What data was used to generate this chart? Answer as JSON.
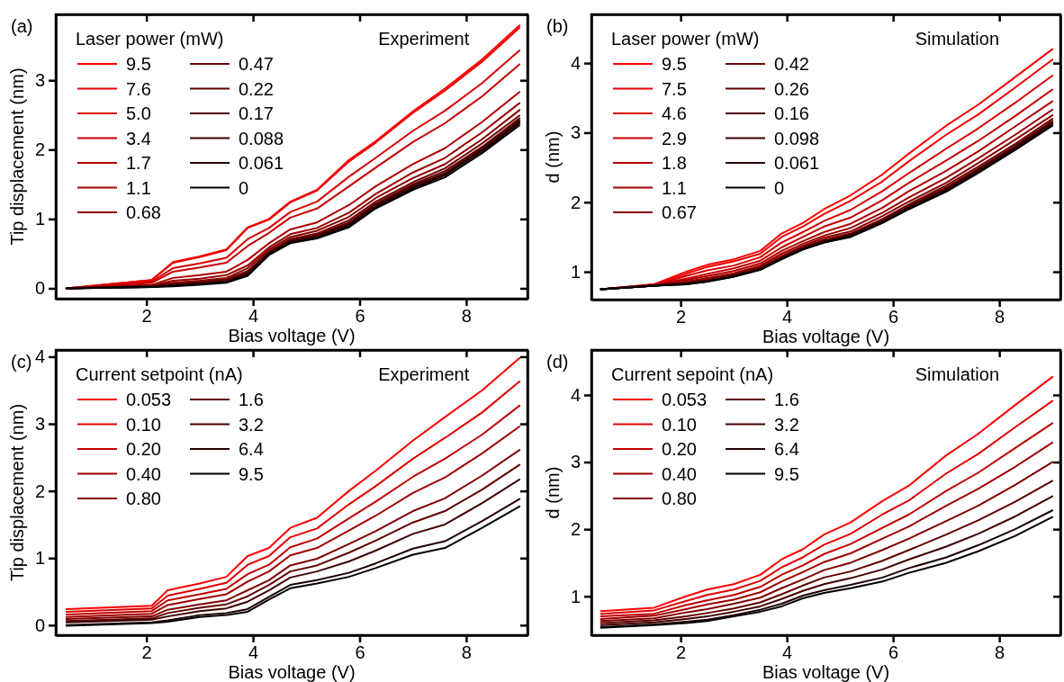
{
  "chart_data": [
    {
      "type": "line",
      "annotations": [
        "(a)",
        "Experiment"
      ],
      "xlabel": "Bias voltage (V)",
      "ylabel": "Tip displacement (nm)",
      "legend_title": "Laser power (mW)",
      "legend": "top left",
      "xlim": [
        0.3,
        9.15
      ],
      "ylim": [
        -0.15,
        3.95
      ],
      "xticks": [
        2,
        4,
        6,
        8
      ],
      "yticks": [
        0,
        1,
        2,
        3
      ],
      "grid": false,
      "line_style": "solid",
      "marker": "none",
      "x": [
        0.5,
        2.1,
        2.5,
        3,
        3.5,
        3.9,
        4.3,
        4.7,
        5.2,
        5.8,
        6.3,
        7,
        7.6,
        8.3,
        9
      ],
      "series": [
        {
          "name": "9.5",
          "color": "#ff0000",
          "values": [
            0,
            0.12,
            0.38,
            0.46,
            0.56,
            0.88,
            1.0,
            1.25,
            1.42,
            1.85,
            2.12,
            2.55,
            2.88,
            3.3,
            3.79
          ]
        },
        {
          "name": "7.6",
          "color": "#ec0000",
          "values": [
            0,
            0.12,
            0.37,
            0.45,
            0.55,
            0.87,
            0.99,
            1.24,
            1.41,
            1.83,
            2.1,
            2.53,
            2.85,
            3.27,
            3.76
          ]
        },
        {
          "name": "5.0",
          "color": "#d80000",
          "values": [
            0,
            0.1,
            0.29,
            0.36,
            0.44,
            0.71,
            0.87,
            1.1,
            1.25,
            1.61,
            1.88,
            2.27,
            2.56,
            2.96,
            3.43
          ]
        },
        {
          "name": "3.4",
          "color": "#c40000",
          "values": [
            0,
            0.08,
            0.24,
            0.3,
            0.37,
            0.61,
            0.8,
            1.02,
            1.15,
            1.47,
            1.74,
            2.11,
            2.38,
            2.77,
            3.23
          ]
        },
        {
          "name": "1.7",
          "color": "#b00000",
          "values": [
            0,
            0.05,
            0.15,
            0.19,
            0.24,
            0.41,
            0.65,
            0.85,
            0.95,
            1.2,
            1.47,
            1.79,
            2.02,
            2.4,
            2.83
          ]
        },
        {
          "name": "1.1",
          "color": "#9c0000",
          "values": [
            0,
            0.04,
            0.11,
            0.14,
            0.19,
            0.33,
            0.59,
            0.78,
            0.87,
            1.09,
            1.36,
            1.67,
            1.88,
            2.25,
            2.67
          ]
        },
        {
          "name": "0.68",
          "color": "#880000",
          "values": [
            0,
            0.04,
            0.08,
            0.11,
            0.15,
            0.29,
            0.56,
            0.74,
            0.83,
            1.03,
            1.3,
            1.59,
            1.79,
            2.15,
            2.57
          ]
        },
        {
          "name": "0.47",
          "color": "#740000",
          "values": [
            0,
            0.03,
            0.07,
            0.09,
            0.13,
            0.25,
            0.53,
            0.71,
            0.79,
            0.98,
            1.25,
            1.53,
            1.73,
            2.09,
            2.49
          ]
        },
        {
          "name": "0.22",
          "color": "#600000",
          "values": [
            0,
            0.03,
            0.05,
            0.08,
            0.11,
            0.23,
            0.52,
            0.69,
            0.77,
            0.95,
            1.22,
            1.5,
            1.69,
            2.04,
            2.45
          ]
        },
        {
          "name": "0.17",
          "color": "#4c0000",
          "values": [
            0,
            0.03,
            0.05,
            0.07,
            0.1,
            0.22,
            0.51,
            0.68,
            0.76,
            0.93,
            1.2,
            1.48,
            1.66,
            2.02,
            2.42
          ]
        },
        {
          "name": "0.088",
          "color": "#380000",
          "values": [
            0,
            0.02,
            0.04,
            0.06,
            0.1,
            0.2,
            0.5,
            0.67,
            0.74,
            0.91,
            1.18,
            1.46,
            1.64,
            2.0,
            2.4
          ]
        },
        {
          "name": "0.061",
          "color": "#240000",
          "values": [
            0,
            0.02,
            0.04,
            0.06,
            0.09,
            0.19,
            0.49,
            0.66,
            0.73,
            0.9,
            1.17,
            1.44,
            1.63,
            1.98,
            2.38
          ]
        },
        {
          "name": "0",
          "color": "#000000",
          "values": [
            0,
            0.02,
            0.03,
            0.05,
            0.08,
            0.18,
            0.48,
            0.65,
            0.72,
            0.88,
            1.15,
            1.42,
            1.6,
            1.95,
            2.35
          ]
        }
      ]
    },
    {
      "type": "line",
      "annotations": [
        "(b)",
        "Simulation"
      ],
      "xlabel": "Bias voltage (V)",
      "ylabel": "d (nm)",
      "legend_title": "Laser power (mW)",
      "legend": "top left",
      "xlim": [
        0.32,
        9.15
      ],
      "ylim": [
        0.6,
        4.7
      ],
      "xticks": [
        2,
        4,
        6,
        8
      ],
      "yticks": [
        1,
        2,
        3,
        4
      ],
      "grid": false,
      "line_style": "solid",
      "marker": "none",
      "x": [
        0.5,
        1.5,
        2.1,
        2.5,
        3,
        3.5,
        3.9,
        4.3,
        4.7,
        5.2,
        5.8,
        6.3,
        7,
        7.6,
        8.3,
        9
      ],
      "series": [
        {
          "name": "9.5",
          "color": "#ff0000",
          "values": [
            0.75,
            0.82,
            1.0,
            1.1,
            1.18,
            1.3,
            1.55,
            1.7,
            1.9,
            2.1,
            2.4,
            2.7,
            3.1,
            3.4,
            3.8,
            4.2
          ]
        },
        {
          "name": "7.5",
          "color": "#ec0000",
          "values": [
            0.75,
            0.82,
            0.97,
            1.07,
            1.15,
            1.26,
            1.5,
            1.65,
            1.83,
            2.02,
            2.3,
            2.59,
            2.97,
            3.26,
            3.65,
            4.05
          ]
        },
        {
          "name": "4.6",
          "color": "#d80000",
          "values": [
            0.75,
            0.81,
            0.94,
            1.02,
            1.09,
            1.21,
            1.42,
            1.57,
            1.73,
            1.89,
            2.16,
            2.42,
            2.77,
            3.06,
            3.43,
            3.82
          ]
        },
        {
          "name": "2.9",
          "color": "#c40000",
          "values": [
            0.75,
            0.81,
            0.9,
            0.97,
            1.05,
            1.16,
            1.35,
            1.5,
            1.65,
            1.78,
            2.03,
            2.28,
            2.6,
            2.88,
            3.24,
            3.62
          ]
        },
        {
          "name": "1.8",
          "color": "#b00000",
          "values": [
            0.75,
            0.81,
            0.88,
            0.94,
            1.01,
            1.12,
            1.3,
            1.44,
            1.57,
            1.69,
            1.92,
            2.16,
            2.45,
            2.73,
            3.09,
            3.45
          ]
        },
        {
          "name": "1.1",
          "color": "#9c0000",
          "values": [
            0.75,
            0.8,
            0.86,
            0.91,
            0.98,
            1.09,
            1.26,
            1.4,
            1.52,
            1.63,
            1.85,
            2.07,
            2.35,
            2.63,
            2.97,
            3.33
          ]
        },
        {
          "name": "0.67",
          "color": "#880000",
          "values": [
            0.75,
            0.8,
            0.85,
            0.89,
            0.97,
            1.07,
            1.23,
            1.37,
            1.49,
            1.58,
            1.8,
            2.01,
            2.28,
            2.56,
            2.9,
            3.25
          ]
        },
        {
          "name": "0.42",
          "color": "#740000",
          "values": [
            0.75,
            0.8,
            0.84,
            0.88,
            0.95,
            1.05,
            1.21,
            1.35,
            1.46,
            1.55,
            1.76,
            1.97,
            2.24,
            2.51,
            2.84,
            3.2
          ]
        },
        {
          "name": "0.26",
          "color": "#600000",
          "values": [
            0.75,
            0.8,
            0.83,
            0.87,
            0.95,
            1.05,
            1.2,
            1.34,
            1.45,
            1.54,
            1.74,
            1.95,
            2.21,
            2.48,
            2.81,
            3.17
          ]
        },
        {
          "name": "0.16",
          "color": "#4c0000",
          "values": [
            0.75,
            0.8,
            0.83,
            0.87,
            0.94,
            1.04,
            1.2,
            1.34,
            1.44,
            1.53,
            1.73,
            1.94,
            2.19,
            2.46,
            2.8,
            3.15
          ]
        },
        {
          "name": "0.098",
          "color": "#380000",
          "values": [
            0.75,
            0.8,
            0.83,
            0.87,
            0.94,
            1.04,
            1.19,
            1.33,
            1.43,
            1.52,
            1.72,
            1.92,
            2.18,
            2.45,
            2.78,
            3.13
          ]
        },
        {
          "name": "0.061",
          "color": "#240000",
          "values": [
            0.75,
            0.8,
            0.82,
            0.86,
            0.93,
            1.03,
            1.18,
            1.32,
            1.42,
            1.51,
            1.71,
            1.91,
            2.16,
            2.43,
            2.76,
            3.11
          ]
        },
        {
          "name": "0",
          "color": "#000000",
          "values": [
            0.75,
            0.8,
            0.82,
            0.86,
            0.93,
            1.03,
            1.18,
            1.32,
            1.42,
            1.5,
            1.7,
            1.9,
            2.15,
            2.42,
            2.75,
            3.1
          ]
        }
      ]
    },
    {
      "type": "line",
      "annotations": [
        "(c)",
        "Experiment"
      ],
      "xlabel": "Bias voltage (V)",
      "ylabel": "Tip displacement (nm)",
      "legend_title": "Current setpoint (nA)",
      "legend": "top left",
      "xlim": [
        0.3,
        9.15
      ],
      "ylim": [
        -0.15,
        4.1
      ],
      "xticks": [
        2,
        4,
        6,
        8
      ],
      "yticks": [
        0,
        1,
        2,
        3,
        4
      ],
      "grid": false,
      "line_style": "solid",
      "marker": "none",
      "x": [
        0.5,
        2.1,
        2.4,
        3,
        3.5,
        3.9,
        4.3,
        4.7,
        5.2,
        5.8,
        6.3,
        7,
        7.6,
        8.3,
        9
      ],
      "series": [
        {
          "name": "0.053",
          "color": "#ff0000",
          "values": [
            0.24,
            0.29,
            0.52,
            0.62,
            0.72,
            1.03,
            1.15,
            1.45,
            1.6,
            2.0,
            2.3,
            2.75,
            3.1,
            3.5,
            3.98
          ]
        },
        {
          "name": "0.10",
          "color": "#e00000",
          "values": [
            0.2,
            0.25,
            0.44,
            0.54,
            0.63,
            0.9,
            1.03,
            1.31,
            1.44,
            1.8,
            2.07,
            2.48,
            2.79,
            3.17,
            3.63
          ]
        },
        {
          "name": "0.20",
          "color": "#c00000",
          "values": [
            0.16,
            0.21,
            0.37,
            0.46,
            0.54,
            0.76,
            0.9,
            1.16,
            1.29,
            1.59,
            1.84,
            2.21,
            2.48,
            2.84,
            3.27
          ]
        },
        {
          "name": "0.40",
          "color": "#a00000",
          "values": [
            0.12,
            0.17,
            0.3,
            0.39,
            0.46,
            0.65,
            0.8,
            1.04,
            1.15,
            1.41,
            1.63,
            1.97,
            2.2,
            2.56,
            2.96
          ]
        },
        {
          "name": "0.80",
          "color": "#800000",
          "values": [
            0.09,
            0.13,
            0.23,
            0.31,
            0.37,
            0.52,
            0.67,
            0.89,
            0.99,
            1.21,
            1.4,
            1.7,
            1.89,
            2.23,
            2.61
          ]
        },
        {
          "name": "1.6",
          "color": "#600000",
          "values": [
            0.06,
            0.1,
            0.18,
            0.26,
            0.31,
            0.43,
            0.6,
            0.8,
            0.89,
            1.08,
            1.26,
            1.53,
            1.7,
            2.02,
            2.39
          ]
        },
        {
          "name": "3.2",
          "color": "#400000",
          "values": [
            0.04,
            0.08,
            0.13,
            0.21,
            0.25,
            0.35,
            0.52,
            0.71,
            0.8,
            0.95,
            1.11,
            1.36,
            1.5,
            1.82,
            2.17
          ]
        },
        {
          "name": "6.4",
          "color": "#200000",
          "values": [
            0.0,
            0.04,
            0.07,
            0.15,
            0.18,
            0.24,
            0.42,
            0.6,
            0.67,
            0.78,
            0.92,
            1.14,
            1.25,
            1.55,
            1.88
          ]
        },
        {
          "name": "9.5",
          "color": "#000000",
          "values": [
            -0.01,
            0.03,
            0.05,
            0.12,
            0.15,
            0.2,
            0.38,
            0.55,
            0.62,
            0.72,
            0.85,
            1.05,
            1.15,
            1.45,
            1.77
          ]
        }
      ]
    },
    {
      "type": "line",
      "annotations": [
        "(d)",
        "Simulation"
      ],
      "xlabel": "Bias voltage (V)",
      "ylabel": "d (nm)",
      "legend_title": "Current sepoint (nA)",
      "legend": "top left",
      "xlim": [
        0.32,
        9.15
      ],
      "ylim": [
        0.42,
        4.67
      ],
      "xticks": [
        2,
        4,
        6,
        8
      ],
      "yticks": [
        1,
        2,
        3,
        4
      ],
      "grid": false,
      "line_style": "solid",
      "marker": "none",
      "x": [
        0.5,
        1.5,
        2.1,
        2.5,
        3,
        3.5,
        3.9,
        4.3,
        4.7,
        5.2,
        5.8,
        6.3,
        7,
        7.6,
        8.3,
        9
      ],
      "series": [
        {
          "name": "0.053",
          "color": "#ff0000",
          "values": [
            0.78,
            0.83,
            1.0,
            1.1,
            1.18,
            1.32,
            1.55,
            1.7,
            1.92,
            2.1,
            2.42,
            2.65,
            3.1,
            3.42,
            3.85,
            4.27
          ]
        },
        {
          "name": "0.10",
          "color": "#e00000",
          "values": [
            0.74,
            0.79,
            0.93,
            1.02,
            1.1,
            1.23,
            1.43,
            1.58,
            1.77,
            1.93,
            2.22,
            2.43,
            2.83,
            3.12,
            3.52,
            3.91
          ]
        },
        {
          "name": "0.20",
          "color": "#c00000",
          "values": [
            0.7,
            0.74,
            0.87,
            0.94,
            1.02,
            1.14,
            1.32,
            1.46,
            1.63,
            1.78,
            2.02,
            2.22,
            2.57,
            2.84,
            3.21,
            3.58
          ]
        },
        {
          "name": "0.40",
          "color": "#a00000",
          "values": [
            0.66,
            0.71,
            0.81,
            0.88,
            0.95,
            1.06,
            1.22,
            1.36,
            1.51,
            1.64,
            1.86,
            2.04,
            2.35,
            2.6,
            2.93,
            3.29
          ]
        },
        {
          "name": "0.80",
          "color": "#800000",
          "values": [
            0.63,
            0.67,
            0.76,
            0.81,
            0.89,
            0.98,
            1.12,
            1.25,
            1.39,
            1.5,
            1.69,
            1.86,
            2.12,
            2.35,
            2.66,
            3.0
          ]
        },
        {
          "name": "1.6",
          "color": "#600000",
          "values": [
            0.6,
            0.64,
            0.7,
            0.75,
            0.82,
            0.91,
            1.03,
            1.16,
            1.28,
            1.37,
            1.53,
            1.69,
            1.92,
            2.13,
            2.41,
            2.72
          ]
        },
        {
          "name": "3.2",
          "color": "#400000",
          "values": [
            0.57,
            0.61,
            0.66,
            0.7,
            0.77,
            0.85,
            0.96,
            1.08,
            1.18,
            1.27,
            1.4,
            1.55,
            1.74,
            1.93,
            2.19,
            2.49
          ]
        },
        {
          "name": "6.4",
          "color": "#200000",
          "values": [
            0.54,
            0.58,
            0.62,
            0.65,
            0.72,
            0.8,
            0.89,
            1.01,
            1.09,
            1.17,
            1.28,
            1.42,
            1.58,
            1.76,
            2.0,
            2.28
          ]
        },
        {
          "name": "9.5",
          "color": "#000000",
          "values": [
            0.53,
            0.57,
            0.6,
            0.63,
            0.7,
            0.77,
            0.85,
            0.97,
            1.05,
            1.12,
            1.22,
            1.35,
            1.5,
            1.67,
            1.9,
            2.18
          ]
        }
      ]
    }
  ]
}
